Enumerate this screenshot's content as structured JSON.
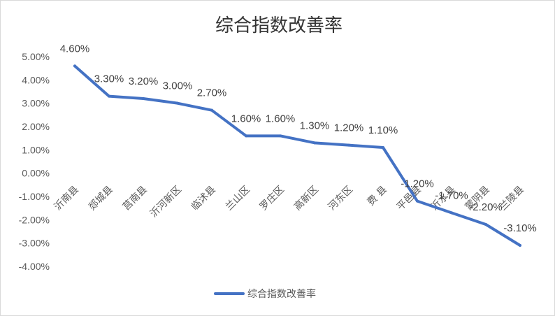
{
  "chart_data": {
    "type": "line",
    "title": "综合指数改善率",
    "categories": [
      "沂南县",
      "郯城县",
      "莒南县",
      "沂河新区",
      "临沭县",
      "兰山区",
      "罗庄区",
      "高新区",
      "河东区",
      "费 县",
      "平邑县",
      "沂水县",
      "蒙阴县",
      "兰陵县"
    ],
    "series": [
      {
        "name": "综合指数改善率",
        "values": [
          4.6,
          3.3,
          3.2,
          3.0,
          2.7,
          1.6,
          1.6,
          1.3,
          1.2,
          1.1,
          -1.2,
          -1.7,
          -2.2,
          -3.1
        ],
        "labels": [
          "4.60%",
          "3.30%",
          "3.20%",
          "3.00%",
          "2.70%",
          "1.60%",
          "1.60%",
          "1.30%",
          "1.20%",
          "1.10%",
          "-1.20%",
          "-1.70%",
          "-2.20%",
          "-3.10%"
        ]
      }
    ],
    "y_ticks": [
      "5.00%",
      "4.00%",
      "3.00%",
      "2.00%",
      "1.00%",
      "0.00%",
      "-1.00%",
      "-2.00%",
      "-3.00%",
      "-4.00%"
    ],
    "ylim": [
      -4,
      5
    ],
    "unit": "%",
    "grid": false,
    "legend": "bottom",
    "line_color": "#4472C4"
  }
}
